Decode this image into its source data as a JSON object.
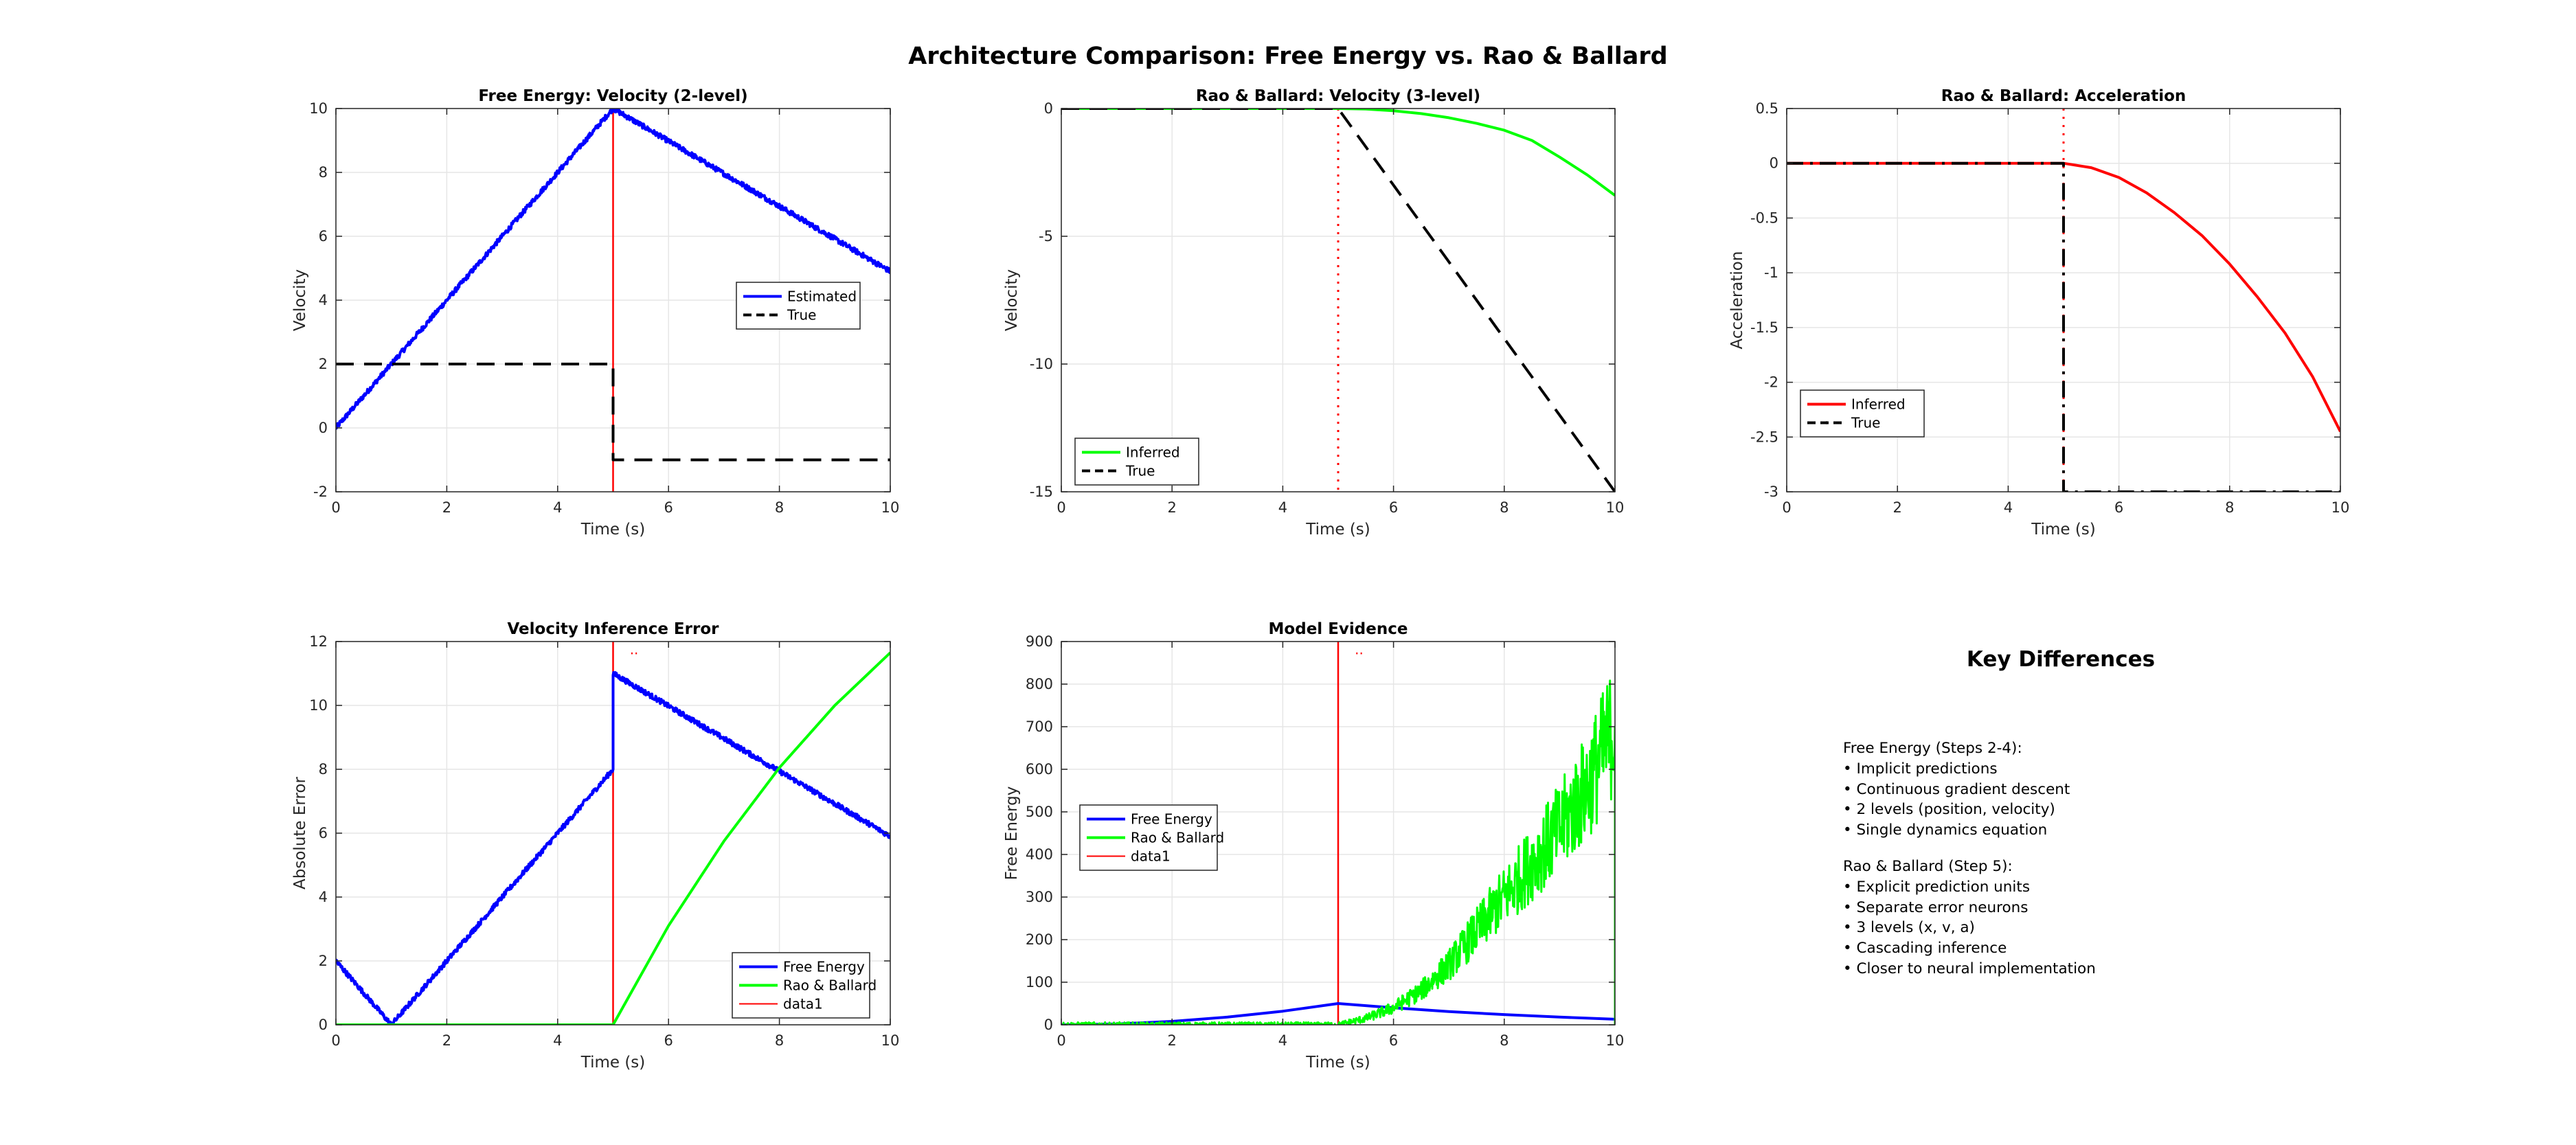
{
  "figure_title": "Architecture Comparison: Free Energy vs. Rao & Ballard",
  "key_differences": {
    "title": "Key Differences",
    "free_energy_heading": "Free Energy (Steps 2-4):",
    "free_energy_points": [
      "• Implicit predictions",
      "• Continuous gradient descent",
      "• 2 levels (position, velocity)",
      "• Single dynamics equation"
    ],
    "rao_ballard_heading": "Rao & Ballard (Step 5):",
    "rao_ballard_points": [
      "• Explicit prediction units",
      "• Separate error neurons",
      "• 3 levels (x, v, a)",
      "• Cascading inference",
      "• Closer to neural implementation"
    ]
  },
  "colors": {
    "blue": "#0000ff",
    "green": "#00ff00",
    "red": "#ff0000",
    "black": "#000000",
    "grid": "#e6e6e6"
  },
  "chart_data": [
    {
      "id": "fe-velocity",
      "type": "line",
      "title": "Free Energy: Velocity (2-level)",
      "xlabel": "Time (s)",
      "ylabel": "Velocity",
      "xlim": [
        0,
        10
      ],
      "ylim": [
        -2,
        10
      ],
      "xticks": [
        0,
        2,
        4,
        6,
        8,
        10
      ],
      "yticks": [
        -2,
        0,
        2,
        4,
        6,
        8,
        10
      ],
      "vline": {
        "x": 5,
        "style": "solid",
        "color": "#ff0000"
      },
      "legend": {
        "position": "right",
        "entries": [
          "Estimated",
          "True"
        ]
      },
      "series": [
        {
          "name": "Estimated",
          "color": "#0000ff",
          "style": "solid",
          "width": 4,
          "noise": 0.08,
          "x": [
            0,
            5,
            10
          ],
          "y": [
            0,
            10,
            4.9
          ]
        },
        {
          "name": "True",
          "color": "#000000",
          "style": "dashed",
          "width": 4,
          "x": [
            0,
            5,
            5,
            10
          ],
          "y": [
            2,
            2,
            -1,
            -1
          ]
        }
      ]
    },
    {
      "id": "rb-velocity",
      "type": "line",
      "title": "Rao & Ballard: Velocity (3-level)",
      "xlabel": "Time (s)",
      "ylabel": "Velocity",
      "xlim": [
        0,
        10
      ],
      "ylim": [
        -15,
        0
      ],
      "xticks": [
        0,
        2,
        4,
        6,
        8,
        10
      ],
      "yticks": [
        -15,
        -10,
        -5,
        0
      ],
      "vline": {
        "x": 5,
        "style": "dotted",
        "color": "#ff0000"
      },
      "legend": {
        "position": "bottom-left",
        "entries": [
          "Inferred",
          "True"
        ]
      },
      "series": [
        {
          "name": "Inferred",
          "color": "#00ff00",
          "style": "solid",
          "width": 4,
          "x": [
            0,
            5,
            5.5,
            6,
            6.5,
            7,
            7.5,
            8,
            8.5,
            9,
            9.5,
            10
          ],
          "y": [
            0,
            0,
            -0.02,
            -0.09,
            -0.2,
            -0.36,
            -0.58,
            -0.85,
            -1.25,
            -1.9,
            -2.6,
            -3.4
          ]
        },
        {
          "name": "True",
          "color": "#000000",
          "style": "dashed",
          "width": 4,
          "x": [
            0,
            5,
            10
          ],
          "y": [
            0,
            0,
            -15
          ]
        }
      ]
    },
    {
      "id": "rb-acceleration",
      "type": "line",
      "title": "Rao & Ballard: Acceleration",
      "xlabel": "Time (s)",
      "ylabel": "Acceleration",
      "xlim": [
        0,
        10
      ],
      "ylim": [
        -3,
        0.5
      ],
      "xticks": [
        0,
        2,
        4,
        6,
        8,
        10
      ],
      "yticks": [
        -3,
        -2.5,
        -2,
        -1.5,
        -1,
        -0.5,
        0,
        0.5
      ],
      "vline": {
        "x": 5,
        "style": "dotted",
        "color": "#ff0000"
      },
      "legend": {
        "position": "bottom-left",
        "entries": [
          "Inferred",
          "True"
        ]
      },
      "series": [
        {
          "name": "Inferred",
          "color": "#ff0000",
          "style": "solid",
          "width": 4,
          "x": [
            0,
            5,
            5.5,
            6,
            6.5,
            7,
            7.5,
            8,
            8.5,
            9,
            9.5,
            10
          ],
          "y": [
            0,
            0,
            -0.04,
            -0.13,
            -0.27,
            -0.45,
            -0.66,
            -0.92,
            -1.22,
            -1.55,
            -1.95,
            -2.45
          ]
        },
        {
          "name": "True",
          "color": "#000000",
          "style": "dashdot",
          "width": 4,
          "x": [
            0,
            5,
            5,
            10
          ],
          "y": [
            0,
            0,
            -3,
            -3
          ]
        }
      ]
    },
    {
      "id": "velocity-error",
      "type": "line",
      "title": "Velocity Inference Error",
      "xlabel": "Time (s)",
      "ylabel": "Absolute Error",
      "xlim": [
        0,
        10
      ],
      "ylim": [
        0,
        12
      ],
      "xticks": [
        0,
        2,
        4,
        6,
        8,
        10
      ],
      "yticks": [
        0,
        2,
        4,
        6,
        8,
        10,
        12
      ],
      "vline": {
        "x": 5,
        "style": "solid",
        "color": "#ff0000"
      },
      "marker_text": {
        "text": "..",
        "x": 5.3,
        "y": 11.6
      },
      "legend": {
        "position": "bottom-right",
        "entries": [
          "Free Energy",
          "Rao & Ballard",
          "data1"
        ]
      },
      "series": [
        {
          "name": "Free Energy",
          "color": "#0000ff",
          "style": "solid",
          "width": 4,
          "noise": 0.08,
          "x": [
            0,
            1,
            5,
            5,
            10
          ],
          "y": [
            2,
            0,
            8,
            11,
            5.9
          ]
        },
        {
          "name": "Rao & Ballard",
          "color": "#00ff00",
          "style": "solid",
          "width": 4,
          "x": [
            0,
            5,
            6,
            7,
            8,
            9,
            10
          ],
          "y": [
            0,
            0,
            3.1,
            5.75,
            8.05,
            10,
            11.65
          ]
        },
        {
          "name": "data1",
          "color": "#ff0000",
          "style": "solid",
          "width": 2,
          "legend_only": true,
          "x": [],
          "y": []
        }
      ]
    },
    {
      "id": "model-evidence",
      "type": "line",
      "title": "Model Evidence",
      "xlabel": "Time (s)",
      "ylabel": "Free Energy",
      "xlim": [
        0,
        10
      ],
      "ylim": [
        0,
        900
      ],
      "xticks": [
        0,
        2,
        4,
        6,
        8,
        10
      ],
      "yticks": [
        0,
        100,
        200,
        300,
        400,
        500,
        600,
        700,
        800,
        900
      ],
      "vline": {
        "x": 5,
        "style": "solid",
        "color": "#ff0000"
      },
      "marker_text": {
        "text": "..",
        "x": 5.3,
        "y": 870
      },
      "legend": {
        "position": "left",
        "entries": [
          "Free Energy",
          "Rao & Ballard",
          "data1"
        ]
      },
      "series": [
        {
          "name": "Free Energy",
          "color": "#0000ff",
          "style": "solid",
          "width": 4,
          "x": [
            0,
            1,
            2,
            3,
            4,
            5,
            6,
            7,
            8,
            9,
            10
          ],
          "y": [
            0,
            2,
            8,
            18,
            32,
            50,
            40,
            31,
            24,
            18,
            13
          ]
        },
        {
          "name": "Rao & Ballard",
          "color": "#00ff00",
          "style": "solid",
          "width": 3,
          "noise_rel": 0.22,
          "x": [
            0,
            5,
            5.5,
            6,
            6.5,
            7,
            7.5,
            8,
            8.5,
            9,
            9.5,
            10,
            10
          ],
          "y": [
            0,
            0,
            15,
            40,
            80,
            140,
            220,
            300,
            380,
            460,
            560,
            700,
            0
          ]
        },
        {
          "name": "data1",
          "color": "#ff0000",
          "style": "solid",
          "width": 2,
          "legend_only": true,
          "x": [],
          "y": []
        }
      ]
    }
  ]
}
